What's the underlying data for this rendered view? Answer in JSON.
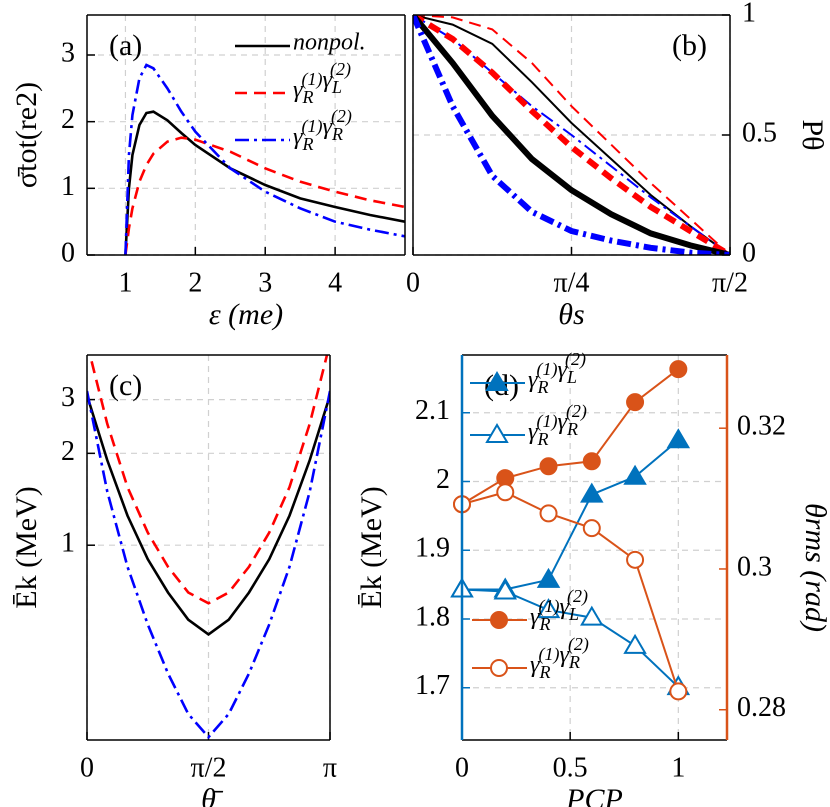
{
  "chart_data": [
    {
      "type": "line",
      "title": "(a)",
      "xlabel": "ε (me)",
      "ylabel": "σ̄tot(re2)",
      "x": [
        1,
        1.05,
        1.1,
        1.2,
        1.3,
        1.4,
        1.6,
        1.8,
        2,
        2.5,
        3,
        3.5,
        4,
        4.5,
        5
      ],
      "series": [
        {
          "name": "nonpol.",
          "color": "#000000",
          "linestyle": "solid",
          "values": [
            0,
            1.0,
            1.5,
            1.95,
            2.13,
            2.15,
            2.02,
            1.83,
            1.65,
            1.3,
            1.05,
            0.85,
            0.72,
            0.6,
            0.5
          ]
        },
        {
          "name": "γR(1)γL(2)",
          "color": "#ff0000",
          "linestyle": "dashed",
          "values": [
            0,
            0.4,
            0.7,
            1.1,
            1.35,
            1.52,
            1.7,
            1.76,
            1.73,
            1.55,
            1.3,
            1.1,
            0.95,
            0.82,
            0.72
          ]
        },
        {
          "name": "γR(1)γR(2)",
          "color": "#0000ff",
          "linestyle": "dashdot",
          "values": [
            0,
            1.5,
            2.1,
            2.65,
            2.85,
            2.8,
            2.5,
            2.15,
            1.85,
            1.3,
            0.95,
            0.7,
            0.5,
            0.38,
            0.28
          ]
        }
      ],
      "xlim": [
        0.45,
        5
      ],
      "xticks": [
        1,
        2,
        3,
        4
      ],
      "ylim": [
        0,
        3.6
      ],
      "yticks": [
        0,
        1,
        2,
        3
      ],
      "grid": true,
      "legend": "upper right"
    },
    {
      "type": "line",
      "title": "(b)",
      "xlabel": "θs",
      "ylabel": "Pθ",
      "yaxis": "right",
      "x": [
        0,
        0.19635,
        0.3927,
        0.58905,
        0.7854,
        0.98175,
        1.1781,
        1.37445,
        1.5708
      ],
      "series": [
        {
          "color": "#ff0000",
          "linestyle": "dashed",
          "weight": "thin",
          "values": [
            1,
            0.99,
            0.94,
            0.8,
            0.62,
            0.46,
            0.3,
            0.15,
            0
          ]
        },
        {
          "color": "#000000",
          "linestyle": "solid",
          "weight": "thin",
          "values": [
            1,
            0.96,
            0.88,
            0.72,
            0.55,
            0.4,
            0.25,
            0.12,
            0
          ]
        },
        {
          "color": "#0000ff",
          "linestyle": "dashdot",
          "weight": "thin",
          "values": [
            1,
            0.9,
            0.76,
            0.62,
            0.5,
            0.37,
            0.24,
            0.12,
            0
          ]
        },
        {
          "color": "#ff0000",
          "linestyle": "dashed",
          "weight": "thick",
          "values": [
            1,
            0.9,
            0.76,
            0.6,
            0.45,
            0.32,
            0.2,
            0.1,
            0
          ]
        },
        {
          "color": "#000000",
          "linestyle": "solid",
          "weight": "thick",
          "values": [
            1,
            0.8,
            0.58,
            0.4,
            0.27,
            0.17,
            0.09,
            0.04,
            0
          ]
        },
        {
          "color": "#0000ff",
          "linestyle": "dashdot",
          "weight": "thick",
          "values": [
            1,
            0.62,
            0.33,
            0.18,
            0.1,
            0.06,
            0.03,
            0.01,
            0
          ]
        }
      ],
      "xlim": [
        0,
        1.5708
      ],
      "xticks": [
        0,
        {
          "value": 0.7854,
          "label": "π/4"
        },
        {
          "value": 1.5708,
          "label": "π/2"
        }
      ],
      "ylim": [
        0,
        1
      ],
      "yticks": [
        0,
        0.5,
        1
      ],
      "grid": true
    },
    {
      "type": "line",
      "title": "(c)",
      "xlabel": "θ̄",
      "ylabel": "Ēk (MeV)",
      "log_y": true,
      "x": [
        0,
        0.2618,
        0.5236,
        0.7854,
        1.0472,
        1.309,
        1.5708,
        1.8326,
        2.0944,
        2.3562,
        2.618,
        2.8798,
        3.1416
      ],
      "series": [
        {
          "color": "#000000",
          "linestyle": "solid",
          "values": [
            3.1,
            1.9,
            1.25,
            0.9,
            0.7,
            0.57,
            0.51,
            0.57,
            0.7,
            0.9,
            1.25,
            1.9,
            3.1
          ]
        },
        {
          "color": "#ff0000",
          "linestyle": "dashed",
          "values": [
            4.6,
            2.5,
            1.55,
            1.1,
            0.85,
            0.7,
            0.645,
            0.7,
            0.85,
            1.1,
            1.55,
            2.5,
            4.6
          ]
        },
        {
          "color": "#0000ff",
          "linestyle": "dashdot",
          "values": [
            3.2,
            1.5,
            0.85,
            0.55,
            0.38,
            0.28,
            0.235,
            0.28,
            0.38,
            0.55,
            0.85,
            1.5,
            3.2
          ]
        }
      ],
      "xlim": [
        0,
        3.1416
      ],
      "xticks": [
        0,
        {
          "value": 1.5708,
          "label": "π/2"
        },
        {
          "value": 3.1416,
          "label": "π"
        }
      ],
      "ylim": [
        0.23,
        4.2
      ],
      "yticks": [
        1,
        2,
        3
      ],
      "grid": true
    },
    {
      "type": "line",
      "title": "(d)",
      "xlabel": "PCP",
      "ylabel": "Ēk (MeV)",
      "y2label": "θrms (rad)",
      "x": [
        0,
        0.2,
        0.4,
        0.6,
        0.8,
        1
      ],
      "series": [
        {
          "name": "γR(1)γL(2)",
          "color": "#0072bd",
          "marker": "triangle",
          "filled": true,
          "values": [
            1.843,
            1.843,
            1.857,
            1.981,
            2.007,
            2.06
          ]
        },
        {
          "name": "γR(1)γR(2)",
          "color": "#0072bd",
          "marker": "triangle",
          "filled": false,
          "values": [
            1.843,
            1.84,
            1.813,
            1.802,
            1.761,
            1.701
          ]
        },
        {
          "name": "γR(1)γL(2)",
          "color": "#d95319",
          "marker": "circle",
          "filled": true,
          "axis": "y2",
          "values": [
            0.3092,
            0.3129,
            0.3146,
            0.3153,
            0.3237,
            0.3284
          ]
        },
        {
          "name": "γR(1)γR(2)",
          "color": "#d95319",
          "marker": "circle",
          "filled": false,
          "axis": "y2",
          "values": [
            0.3092,
            0.3109,
            0.3079,
            0.3058,
            0.3013,
            0.2826
          ]
        }
      ],
      "xlim": [
        0,
        1.225
      ],
      "xticks": [
        0,
        0.5,
        1
      ],
      "ylim": [
        1.624,
        2.184
      ],
      "yticks": [
        1.7,
        1.8,
        1.9,
        2,
        2.1
      ],
      "y2lim": [
        0.2757,
        0.3304
      ],
      "y2ticks": [
        0.28,
        0.3,
        0.32
      ],
      "ycolor": "#0072bd",
      "y2color": "#d95319",
      "grid": true,
      "legend": "upper left",
      "legend2": "lower left"
    }
  ]
}
